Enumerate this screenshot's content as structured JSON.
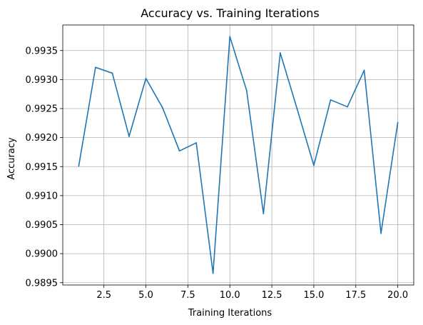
{
  "chart_data": {
    "type": "line",
    "title": "Accuracy vs. Training Iterations",
    "xlabel": "Training Iterations",
    "ylabel": "Accuracy",
    "xlim": [
      0.05,
      20.95
    ],
    "ylim": [
      0.98946,
      0.99394
    ],
    "x_ticks": [
      2.5,
      5.0,
      7.5,
      10.0,
      12.5,
      15.0,
      17.5,
      20.0
    ],
    "x_tick_labels": [
      "2.5",
      "5.0",
      "7.5",
      "10.0",
      "12.5",
      "15.0",
      "17.5",
      "20.0"
    ],
    "y_ticks": [
      0.9895,
      0.99,
      0.9905,
      0.991,
      0.9915,
      0.992,
      0.9925,
      0.993,
      0.9935
    ],
    "y_tick_labels": [
      "0.9895",
      "0.9900",
      "0.9905",
      "0.9910",
      "0.9915",
      "0.9920",
      "0.9925",
      "0.9930",
      "0.9935"
    ],
    "grid": true,
    "series": [
      {
        "color": "#1f77b4",
        "x": [
          1,
          2,
          3,
          4,
          5,
          6,
          7,
          8,
          9,
          10,
          11,
          12,
          13,
          14,
          15,
          16,
          17,
          18,
          19,
          20
        ],
        "y": [
          0.99151,
          0.99321,
          0.99311,
          0.99202,
          0.99302,
          0.99251,
          0.99177,
          0.99191,
          0.98966,
          0.99374,
          0.99281,
          0.99069,
          0.99346,
          0.9925,
          0.99152,
          0.99265,
          0.99253,
          0.99316,
          0.99035,
          0.99226
        ]
      }
    ]
  }
}
